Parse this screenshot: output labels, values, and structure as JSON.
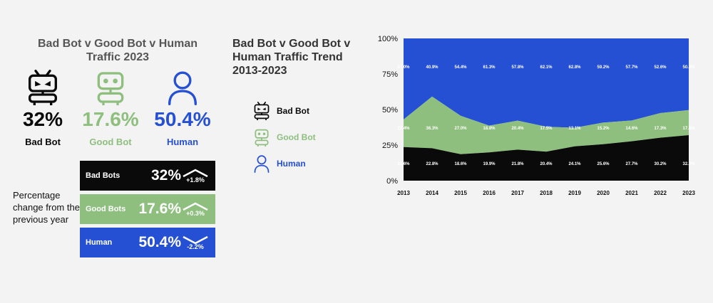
{
  "colors": {
    "bad_bot": "#0a0a0a",
    "good_bot": "#8ebf7e",
    "human": "#2650d4",
    "muted_text": "#555555",
    "background": "#f3f3f3"
  },
  "summary": {
    "title": "Bad Bot v Good Bot v Human Traffic 2023",
    "items": [
      {
        "icon": "bad-bot-icon",
        "value": "32%",
        "label": "Bad Bot"
      },
      {
        "icon": "good-bot-icon",
        "value": "17.6%",
        "label": "Good Bot"
      },
      {
        "icon": "human-icon",
        "value": "50.4%",
        "label": "Human"
      }
    ]
  },
  "change": {
    "description": "Percentage change from the previous year",
    "rows": [
      {
        "name": "Bad Bots",
        "value": "32%",
        "direction": "up",
        "delta": "+1.8%"
      },
      {
        "name": "Good Bots",
        "value": "17.6%",
        "direction": "up",
        "delta": "+0.3%"
      },
      {
        "name": "Human",
        "value": "50.4%",
        "direction": "down",
        "delta": "-2.2%"
      }
    ]
  },
  "trend": {
    "title": "Bad Bot v Good Bot v Human Traffic Trend 2013-2023",
    "legend": [
      {
        "icon": "bad-bot-icon",
        "label": "Bad Bot"
      },
      {
        "icon": "good-bot-icon",
        "label": "Good Bot"
      },
      {
        "icon": "human-icon",
        "label": "Human"
      }
    ]
  },
  "chart_data": {
    "type": "area",
    "stacked": true,
    "x": [
      "2013",
      "2014",
      "2015",
      "2016",
      "2017",
      "2018",
      "2019",
      "2020",
      "2021",
      "2022",
      "2023"
    ],
    "y_ticks": [
      "0%",
      "25%",
      "50%",
      "75%",
      "100%"
    ],
    "ylim": [
      0,
      100
    ],
    "series": [
      {
        "name": "Bad Bot",
        "values": [
          23.6,
          22.8,
          18.6,
          19.9,
          21.8,
          20.4,
          24.1,
          25.6,
          27.7,
          30.2,
          32.0
        ],
        "labels": [
          "23.6%",
          "22.8%",
          "18.6%",
          "19.9%",
          "21.8%",
          "20.4%",
          "24.1%",
          "25.6%",
          "27.7%",
          "30.2%",
          "32.0%"
        ]
      },
      {
        "name": "Good Bot",
        "values": [
          19.4,
          36.3,
          27.0,
          18.8,
          20.4,
          17.5,
          13.1,
          15.2,
          14.6,
          17.3,
          17.6
        ],
        "labels": [
          "19.4%",
          "36.3%",
          "27.0%",
          "18.8%",
          "20.4%",
          "17.5%",
          "13.1%",
          "15.2%",
          "14.6%",
          "17.3%",
          "17.6%"
        ]
      },
      {
        "name": "Human",
        "values": [
          57.0,
          40.9,
          54.4,
          61.3,
          57.8,
          62.1,
          62.8,
          59.2,
          57.7,
          52.6,
          50.4
        ],
        "labels": [
          "57.0%",
          "40.9%",
          "54.4%",
          "61.3%",
          "57.8%",
          "62.1%",
          "62.8%",
          "59.2%",
          "57.7%",
          "52.6%",
          "50.4%"
        ]
      }
    ],
    "grid": false,
    "legend": "left"
  }
}
